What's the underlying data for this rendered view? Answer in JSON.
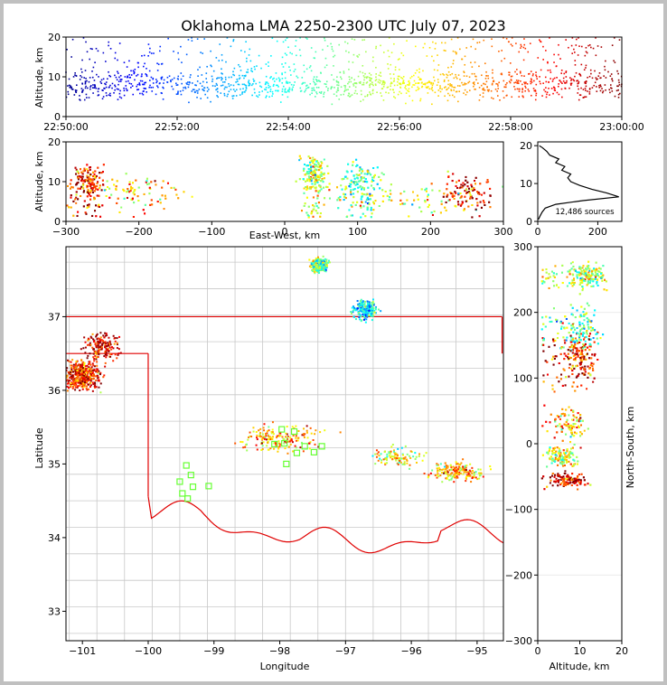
{
  "chart_data": [
    {
      "type": "scatter",
      "panel": "time-altitude",
      "title": "Oklahoma LMA 2250-2300 UTC July 07, 2023",
      "ylabel": "Altitude, km",
      "xlim": [
        "22:50:00",
        "23:00:00"
      ],
      "ylim": [
        0,
        20
      ],
      "x_ticks": [
        "22:50:00",
        "22:52:00",
        "22:54:00",
        "22:56:00",
        "22:58:00",
        "23:00:00"
      ],
      "y_ticks": [
        "0",
        "10",
        "20"
      ],
      "color_encoding": "time",
      "colormap": [
        "#00008f",
        "#0000ff",
        "#0080ff",
        "#00ffff",
        "#80ff80",
        "#ffff00",
        "#ff8000",
        "#ff0000",
        "#800000"
      ]
    },
    {
      "type": "scatter",
      "panel": "east-west-altitude",
      "xlabel": "East-West, km",
      "ylabel": "Altitude, km",
      "xlim": [
        -300,
        300
      ],
      "ylim": [
        0,
        20
      ],
      "x_ticks": [
        "−300",
        "−200",
        "−100",
        "0",
        "100",
        "200",
        "300"
      ],
      "y_ticks": [
        "0",
        "10",
        "20"
      ]
    },
    {
      "type": "line",
      "panel": "altitude-histogram",
      "xlim": [
        0,
        280
      ],
      "ylim": [
        0,
        21
      ],
      "x_ticks": [
        "0",
        "200"
      ],
      "y_ticks": [
        "0",
        "10",
        "20"
      ],
      "annotation": "12,486 sources",
      "profile": [
        {
          "alt": 0.5,
          "count": 2
        },
        {
          "alt": 1.5,
          "count": 8
        },
        {
          "alt": 2.5,
          "count": 15
        },
        {
          "alt": 3.5,
          "count": 25
        },
        {
          "alt": 4.5,
          "count": 60
        },
        {
          "alt": 5.5,
          "count": 150
        },
        {
          "alt": 6.5,
          "count": 270
        },
        {
          "alt": 7.5,
          "count": 230
        },
        {
          "alt": 8.5,
          "count": 180
        },
        {
          "alt": 9.5,
          "count": 140
        },
        {
          "alt": 10.5,
          "count": 110
        },
        {
          "alt": 11.5,
          "count": 100
        },
        {
          "alt": 12.5,
          "count": 110
        },
        {
          "alt": 13.5,
          "count": 80
        },
        {
          "alt": 14.5,
          "count": 90
        },
        {
          "alt": 15.5,
          "count": 60
        },
        {
          "alt": 16.5,
          "count": 70
        },
        {
          "alt": 17.5,
          "count": 40
        },
        {
          "alt": 18.5,
          "count": 30
        },
        {
          "alt": 19.5,
          "count": 15
        },
        {
          "alt": 20.0,
          "count": 5
        }
      ]
    },
    {
      "type": "scatter",
      "panel": "plan-view-map",
      "xlabel": "Longitude",
      "ylabel": "Latitude",
      "xlim": [
        -101.25,
        -94.6
      ],
      "ylim": [
        32.6,
        37.95
      ],
      "x_ticks": [
        "−101",
        "−100",
        "−99",
        "−98",
        "−97",
        "−96",
        "−95"
      ],
      "y_ticks": [
        "33",
        "34",
        "35",
        "36",
        "37"
      ],
      "stations": [
        {
          "lon": -97.97,
          "lat": 35.47
        },
        {
          "lon": -97.78,
          "lat": 35.44
        },
        {
          "lon": -98.08,
          "lat": 35.27
        },
        {
          "lon": -97.93,
          "lat": 35.28
        },
        {
          "lon": -97.74,
          "lat": 35.15
        },
        {
          "lon": -97.62,
          "lat": 35.24
        },
        {
          "lon": -97.48,
          "lat": 35.16
        },
        {
          "lon": -97.36,
          "lat": 35.24
        },
        {
          "lon": -97.9,
          "lat": 35.0
        },
        {
          "lon": -99.42,
          "lat": 34.98
        },
        {
          "lon": -99.35,
          "lat": 34.85
        },
        {
          "lon": -99.52,
          "lat": 34.76
        },
        {
          "lon": -99.32,
          "lat": 34.69
        },
        {
          "lon": -99.08,
          "lat": 34.7
        },
        {
          "lon": -99.48,
          "lat": 34.6
        },
        {
          "lon": -99.4,
          "lat": 34.53
        }
      ]
    },
    {
      "type": "scatter",
      "panel": "altitude-north-south",
      "xlabel": "Altitude, km",
      "ylabel": "North-South, km",
      "xlim": [
        0,
        20
      ],
      "ylim": [
        -300,
        300
      ],
      "x_ticks": [
        "0",
        "10",
        "20"
      ],
      "y_ticks": [
        "−300",
        "−200",
        "−100",
        "0",
        "100",
        "200",
        "300"
      ]
    }
  ]
}
